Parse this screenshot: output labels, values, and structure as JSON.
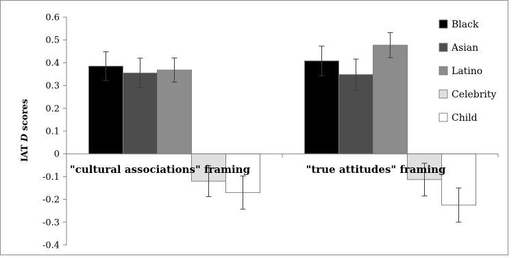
{
  "chart_data": {
    "type": "bar",
    "title": "",
    "ylabel": {
      "prefix": "IAT ",
      "emph": "D",
      "suffix": " scores"
    },
    "xlabel": "",
    "ylim": [
      -0.4,
      0.6
    ],
    "yticks": [
      0.6,
      0.5,
      0.4,
      0.3,
      0.2,
      0.1,
      0,
      -0.1,
      -0.2,
      -0.3,
      -0.4
    ],
    "ytick_labels": [
      "0.6",
      "0.5",
      "0.4",
      "0.3",
      "0.2",
      "0.1",
      "0",
      "-0.1",
      "-0.2",
      "-0.3",
      "-0.4"
    ],
    "categories": [
      "\"cultural associations\" framing",
      "\"true attitudes\" framing"
    ],
    "grid": false,
    "legend_position": "right",
    "series": [
      {
        "name": "Black",
        "color": "#000000",
        "values": [
          0.385,
          0.408
        ],
        "error": [
          0.063,
          0.065
        ]
      },
      {
        "name": "Asian",
        "color": "#4d4d4d",
        "values": [
          0.355,
          0.348
        ],
        "error": [
          0.065,
          0.068
        ]
      },
      {
        "name": "Latino",
        "color": "#8c8c8c",
        "values": [
          0.368,
          0.477
        ],
        "error": [
          0.053,
          0.055
        ]
      },
      {
        "name": "Celebrity",
        "color": "#e0e0e0",
        "values": [
          -0.12,
          -0.113
        ],
        "error": [
          0.068,
          0.072
        ]
      },
      {
        "name": "Child",
        "color": "#ffffff",
        "values": [
          -0.17,
          -0.225
        ],
        "error": [
          0.073,
          0.075
        ]
      }
    ]
  }
}
